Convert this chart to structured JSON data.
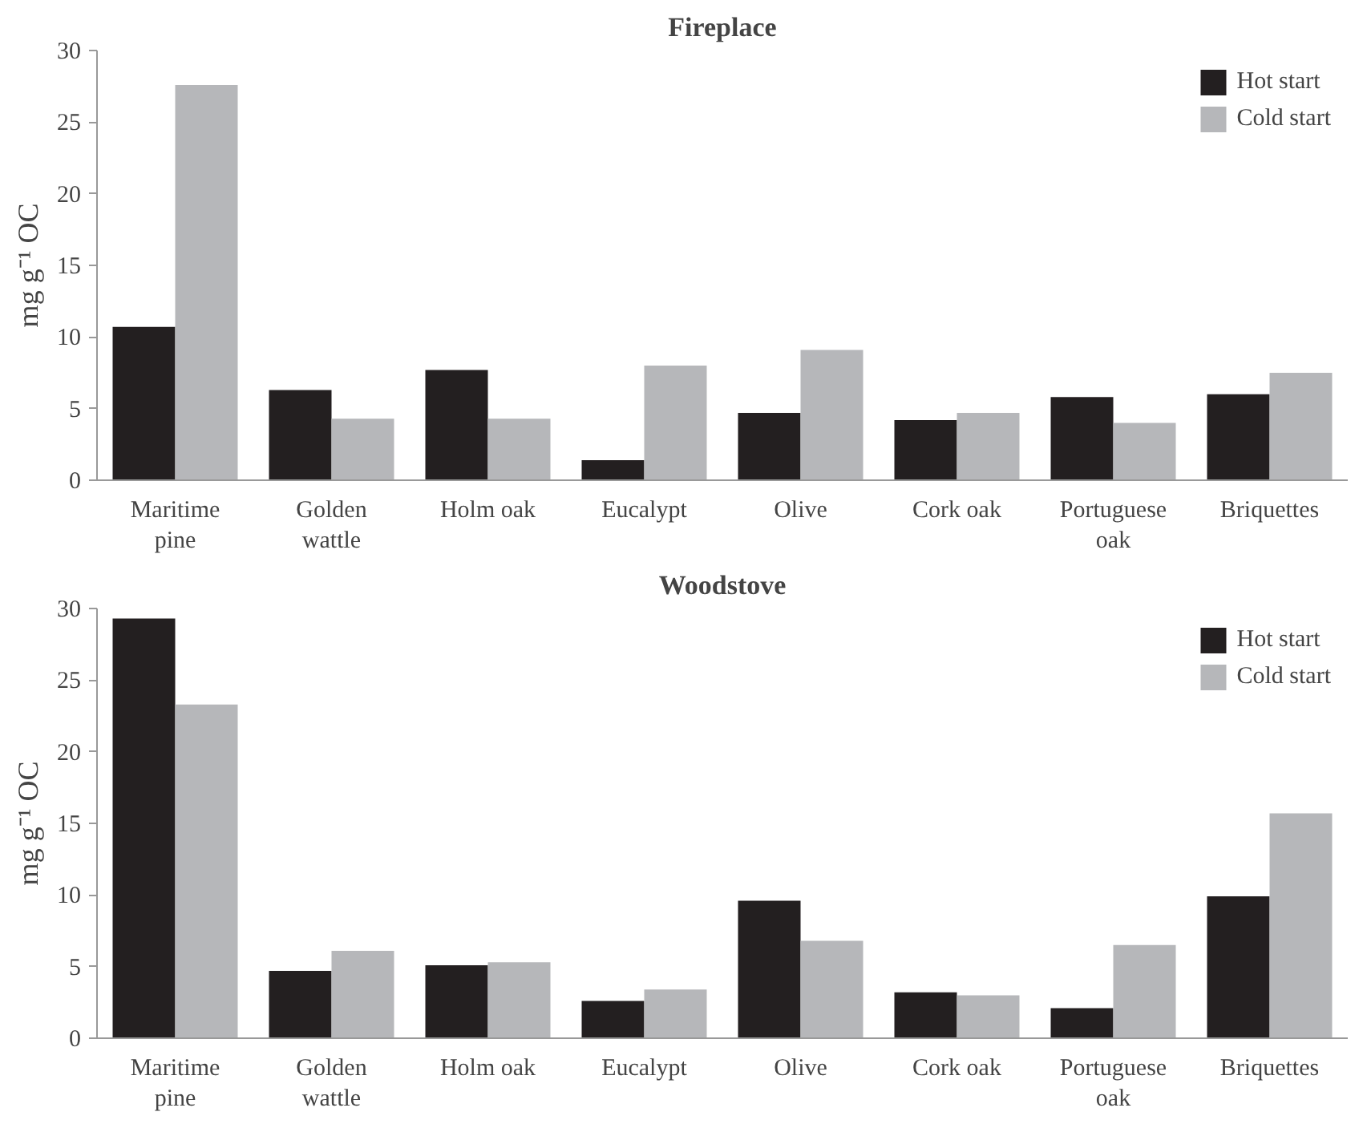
{
  "chart_data": [
    {
      "type": "bar",
      "title": "Fireplace",
      "ylabel": "mg g⁻¹ OC",
      "categories": [
        "Maritime pine",
        "Golden wattle",
        "Holm oak",
        "Eucalypt",
        "Olive",
        "Cork oak",
        "Portuguese oak",
        "Briquettes"
      ],
      "series": [
        {
          "name": "Hot start",
          "color": "#231f20",
          "values": [
            10.7,
            6.3,
            7.7,
            1.4,
            4.7,
            4.2,
            5.8,
            6.0
          ]
        },
        {
          "name": "Cold start",
          "color": "#b6b7ba",
          "values": [
            27.6,
            4.3,
            4.3,
            8.0,
            9.1,
            4.7,
            4.0,
            7.5
          ]
        }
      ],
      "ylim": [
        0,
        30
      ],
      "yticks": [
        0,
        5,
        10,
        15,
        20,
        25,
        30
      ],
      "grid": false,
      "legend": "top right"
    },
    {
      "type": "bar",
      "title": "Woodstove",
      "ylabel": "mg g⁻¹ OC",
      "categories": [
        "Maritime pine",
        "Golden wattle",
        "Holm oak",
        "Eucalypt",
        "Olive",
        "Cork oak",
        "Portuguese oak",
        "Briquettes"
      ],
      "series": [
        {
          "name": "Hot start",
          "color": "#231f20",
          "values": [
            29.3,
            4.7,
            5.1,
            2.6,
            9.6,
            3.2,
            2.1,
            9.9
          ]
        },
        {
          "name": "Cold start",
          "color": "#b6b7ba",
          "values": [
            23.3,
            6.1,
            5.3,
            3.4,
            6.8,
            3.0,
            6.5,
            15.7
          ]
        }
      ],
      "ylim": [
        0,
        30
      ],
      "yticks": [
        0,
        5,
        10,
        15,
        20,
        25,
        30
      ],
      "grid": false,
      "legend": "top right"
    }
  ]
}
